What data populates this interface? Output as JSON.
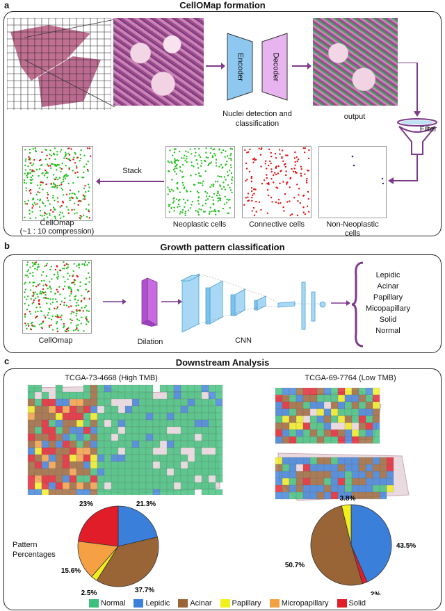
{
  "panel_a": {
    "letter": "a",
    "title": "CellOMap formation",
    "encoder": "Encoder",
    "decoder": "Decoder",
    "nuclei_label_1": "Nuclei detection and",
    "nuclei_label_2": "classification",
    "output_label": "output",
    "filter_label": "Filter",
    "stack_label": "Stack",
    "cellomap_label_1": "CellOmap",
    "cellomap_label_2": "(~1 : 10 compression)",
    "neoplastic_label": "Neoplastic cells",
    "connective_label": "Connective cells",
    "nonneoplastic_label_1": "Non-Neoplastic",
    "nonneoplastic_label_2": "cells"
  },
  "panel_b": {
    "letter": "b",
    "title": "Growth pattern classification",
    "cellomap_label": "CellOmap",
    "dilation_label": "Dilation",
    "cnn_label": "CNN",
    "classes": [
      "Lepidic",
      "Acinar",
      "Papillary",
      "Micopapillary",
      "Solid",
      "Normal"
    ]
  },
  "panel_c": {
    "letter": "c",
    "title": "Downstream Analysis",
    "left_title": "TCGA-73-4668  (High TMB)",
    "right_title": "TCGA-69-7764  (Low TMB)",
    "pattern_label_1": "Pattern",
    "pattern_label_2": "Percentages"
  },
  "legend": [
    {
      "name": "Normal",
      "color": "#3cc07a"
    },
    {
      "name": "Lepidic",
      "color": "#3a7fd9"
    },
    {
      "name": "Acinar",
      "color": "#9a6536"
    },
    {
      "name": "Papillary",
      "color": "#f1ef1c"
    },
    {
      "name": "Micropapillary",
      "color": "#f5a042"
    },
    {
      "name": "Solid",
      "color": "#e11d2a"
    }
  ],
  "chart_data": [
    {
      "type": "pie",
      "labels": [
        "Lepidic",
        "Acinar",
        "Papillary",
        "Micropapillary",
        "Solid"
      ],
      "values": [
        21.3,
        37.7,
        2.5,
        15.6,
        23.0
      ],
      "value_labels": [
        "21.3%",
        "37.7%",
        "2.5%",
        "15.6%",
        "23%"
      ],
      "colors": [
        "#3a7fd9",
        "#9a6536",
        "#f1ef1c",
        "#f5a042",
        "#e11d2a"
      ]
    },
    {
      "type": "pie",
      "labels": [
        "Lepidic",
        "Solid",
        "Acinar",
        "Papillary"
      ],
      "values": [
        43.5,
        2.0,
        50.7,
        3.8
      ],
      "value_labels": [
        "43.5%",
        "2%",
        "50.7%",
        "3.8%"
      ],
      "colors": [
        "#3a7fd9",
        "#e11d2a",
        "#9a6536",
        "#f1ef1c"
      ]
    }
  ]
}
